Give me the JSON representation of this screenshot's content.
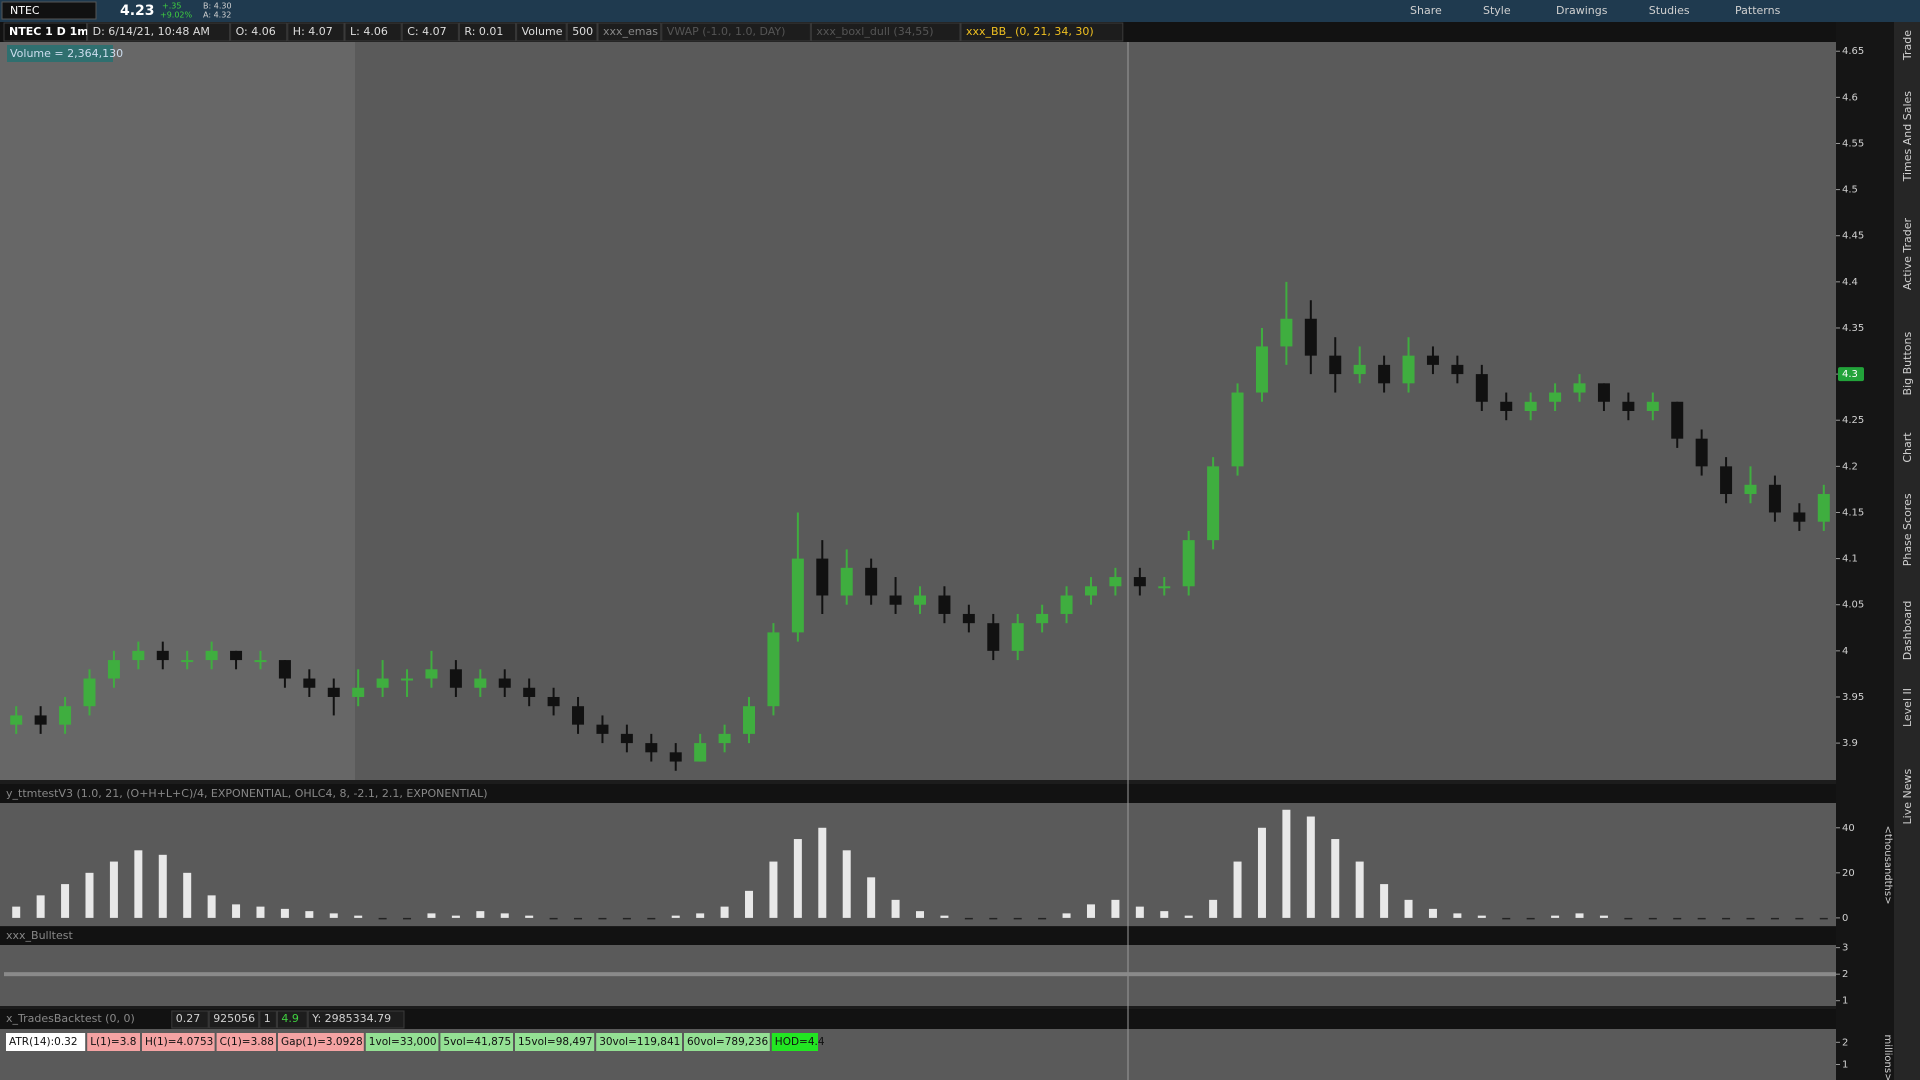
{
  "toolbar": {
    "symbol": "NTEC",
    "price": "4.23",
    "change": "+.35",
    "change_pct": "+9.02%",
    "bid": "B: 4.30",
    "ask": "A: 4.32",
    "buttons": [
      "Share",
      "Style",
      "Drawings",
      "Studies",
      "Patterns"
    ]
  },
  "header": [
    "NTEC 1 D 1m",
    "D: 6/14/21, 10:48 AM",
    "O: 4.06",
    "H: 4.07",
    "L: 4.06",
    "C: 4.07",
    "R: 0.01",
    "Volume",
    "500",
    "xxx_emas",
    "VWAP (-1.0, 1.0, DAY)",
    "xxx_boxl_dull (34,55)",
    "xxx_BB_ (0, 21, 34, 30)"
  ],
  "volume_label": "Volume = 2,364,130",
  "side_tabs": [
    "Trade",
    "Times And Sales",
    "Active Trader",
    "Big Buttons",
    "Chart",
    "Phase Scores",
    "Dashboard",
    "Level II",
    "Live News"
  ],
  "chart_data": [
    {
      "type": "candlestick",
      "ylim": [
        3.86,
        4.66
      ],
      "yticks": [
        4.65,
        4.6,
        4.55,
        4.5,
        4.45,
        4.4,
        4.35,
        4.3,
        4.25,
        4.2,
        4.15,
        4.1,
        4.05,
        4,
        3.95,
        3.9
      ],
      "price_tag": 4.3,
      "up_color": "#3fae3f",
      "down_color": "#111111",
      "candles": [
        [
          3.92,
          3.94,
          3.91,
          3.93
        ],
        [
          3.93,
          3.94,
          3.91,
          3.92
        ],
        [
          3.92,
          3.95,
          3.91,
          3.94
        ],
        [
          3.94,
          3.98,
          3.93,
          3.97
        ],
        [
          3.97,
          4.0,
          3.96,
          3.99
        ],
        [
          3.99,
          4.01,
          3.98,
          4.0
        ],
        [
          4.0,
          4.01,
          3.98,
          3.99
        ],
        [
          3.99,
          4.0,
          3.98,
          3.99
        ],
        [
          3.99,
          4.01,
          3.98,
          4.0
        ],
        [
          4.0,
          4.0,
          3.98,
          3.99
        ],
        [
          3.99,
          4.0,
          3.98,
          3.99
        ],
        [
          3.99,
          3.99,
          3.96,
          3.97
        ],
        [
          3.97,
          3.98,
          3.95,
          3.96
        ],
        [
          3.96,
          3.97,
          3.93,
          3.95
        ],
        [
          3.95,
          3.98,
          3.94,
          3.96
        ],
        [
          3.96,
          3.99,
          3.95,
          3.97
        ],
        [
          3.97,
          3.98,
          3.95,
          3.97
        ],
        [
          3.97,
          4.0,
          3.96,
          3.98
        ],
        [
          3.98,
          3.99,
          3.95,
          3.96
        ],
        [
          3.96,
          3.98,
          3.95,
          3.97
        ],
        [
          3.97,
          3.98,
          3.95,
          3.96
        ],
        [
          3.96,
          3.97,
          3.94,
          3.95
        ],
        [
          3.95,
          3.96,
          3.93,
          3.94
        ],
        [
          3.94,
          3.95,
          3.91,
          3.92
        ],
        [
          3.92,
          3.93,
          3.9,
          3.91
        ],
        [
          3.91,
          3.92,
          3.89,
          3.9
        ],
        [
          3.9,
          3.91,
          3.88,
          3.89
        ],
        [
          3.89,
          3.9,
          3.87,
          3.88
        ],
        [
          3.88,
          3.91,
          3.88,
          3.9
        ],
        [
          3.9,
          3.92,
          3.89,
          3.91
        ],
        [
          3.91,
          3.95,
          3.9,
          3.94
        ],
        [
          3.94,
          4.03,
          3.93,
          4.02
        ],
        [
          4.02,
          4.15,
          4.01,
          4.1
        ],
        [
          4.1,
          4.12,
          4.04,
          4.06
        ],
        [
          4.06,
          4.11,
          4.05,
          4.09
        ],
        [
          4.09,
          4.1,
          4.05,
          4.06
        ],
        [
          4.06,
          4.08,
          4.04,
          4.05
        ],
        [
          4.05,
          4.07,
          4.04,
          4.06
        ],
        [
          4.06,
          4.07,
          4.03,
          4.04
        ],
        [
          4.04,
          4.05,
          4.02,
          4.03
        ],
        [
          4.03,
          4.04,
          3.99,
          4.0
        ],
        [
          4.0,
          4.04,
          3.99,
          4.03
        ],
        [
          4.03,
          4.05,
          4.02,
          4.04
        ],
        [
          4.04,
          4.07,
          4.03,
          4.06
        ],
        [
          4.06,
          4.08,
          4.05,
          4.07
        ],
        [
          4.07,
          4.09,
          4.06,
          4.08
        ],
        [
          4.08,
          4.09,
          4.06,
          4.07
        ],
        [
          4.07,
          4.08,
          4.06,
          4.07
        ],
        [
          4.07,
          4.13,
          4.06,
          4.12
        ],
        [
          4.12,
          4.21,
          4.11,
          4.2
        ],
        [
          4.2,
          4.29,
          4.19,
          4.28
        ],
        [
          4.28,
          4.35,
          4.27,
          4.33
        ],
        [
          4.33,
          4.4,
          4.31,
          4.36
        ],
        [
          4.36,
          4.38,
          4.3,
          4.32
        ],
        [
          4.32,
          4.34,
          4.28,
          4.3
        ],
        [
          4.3,
          4.33,
          4.29,
          4.31
        ],
        [
          4.31,
          4.32,
          4.28,
          4.29
        ],
        [
          4.29,
          4.34,
          4.28,
          4.32
        ],
        [
          4.32,
          4.33,
          4.3,
          4.31
        ],
        [
          4.31,
          4.32,
          4.29,
          4.3
        ],
        [
          4.3,
          4.31,
          4.26,
          4.27
        ],
        [
          4.27,
          4.28,
          4.25,
          4.26
        ],
        [
          4.26,
          4.28,
          4.25,
          4.27
        ],
        [
          4.27,
          4.29,
          4.26,
          4.28
        ],
        [
          4.28,
          4.3,
          4.27,
          4.29
        ],
        [
          4.29,
          4.29,
          4.26,
          4.27
        ],
        [
          4.27,
          4.28,
          4.25,
          4.26
        ],
        [
          4.26,
          4.28,
          4.25,
          4.27
        ],
        [
          4.27,
          4.27,
          4.22,
          4.23
        ],
        [
          4.23,
          4.24,
          4.19,
          4.2
        ],
        [
          4.2,
          4.21,
          4.16,
          4.17
        ],
        [
          4.17,
          4.2,
          4.16,
          4.18
        ],
        [
          4.18,
          4.19,
          4.14,
          4.15
        ],
        [
          4.15,
          4.16,
          4.13,
          4.14
        ],
        [
          4.14,
          4.18,
          4.13,
          4.17
        ]
      ]
    },
    {
      "type": "bar",
      "title": "y_ttmtestV3 (1.0, 21, (O+H+L+C)/4, EXPONENTIAL, OHLC4, 8, -2.1, 2.1, EXPONENTIAL)",
      "y_label": "<thousandths>",
      "ylim": [
        -3.6,
        51
      ],
      "yticks": [
        0,
        20,
        40
      ],
      "color": "#e8e8e8",
      "values": [
        5,
        10,
        15,
        20,
        25,
        30,
        28,
        20,
        10,
        6,
        5,
        4,
        3,
        2,
        1,
        0,
        0,
        2,
        1,
        3,
        2,
        1,
        0,
        0,
        0,
        0,
        0,
        1,
        2,
        5,
        12,
        25,
        35,
        40,
        30,
        18,
        8,
        3,
        1,
        0,
        0,
        0,
        0,
        2,
        6,
        8,
        5,
        3,
        1,
        8,
        25,
        40,
        48,
        45,
        35,
        25,
        15,
        8,
        4,
        2,
        1,
        0,
        0,
        1,
        2,
        1,
        0,
        0,
        0,
        0,
        0,
        0,
        0,
        0,
        0
      ]
    },
    {
      "type": "level",
      "title": "xxx_Bulltest",
      "ylim": [
        0.8,
        3.1
      ],
      "yticks": [
        3,
        2,
        1
      ],
      "value": 2
    },
    {
      "type": "stats",
      "title": "x_TradesBacktest (0, 0)",
      "fields": [
        "0.27",
        "925056",
        "1",
        "4.9",
        "Y: 2985334.79"
      ],
      "y_label": "millions>",
      "ylim": [
        0.3,
        2.6
      ],
      "yticks": [
        2,
        1
      ],
      "badges": [
        "ATR(14):0.32",
        "L(1)=3.8",
        "H(1)=4.0753",
        "C(1)=3.88",
        "Gap(1)=3.0928",
        "1vol=33,000",
        "5vol=41,875",
        "15vol=98,497",
        "30vol=119,841",
        "60vol=789,236",
        "HOD=4.4"
      ]
    }
  ]
}
